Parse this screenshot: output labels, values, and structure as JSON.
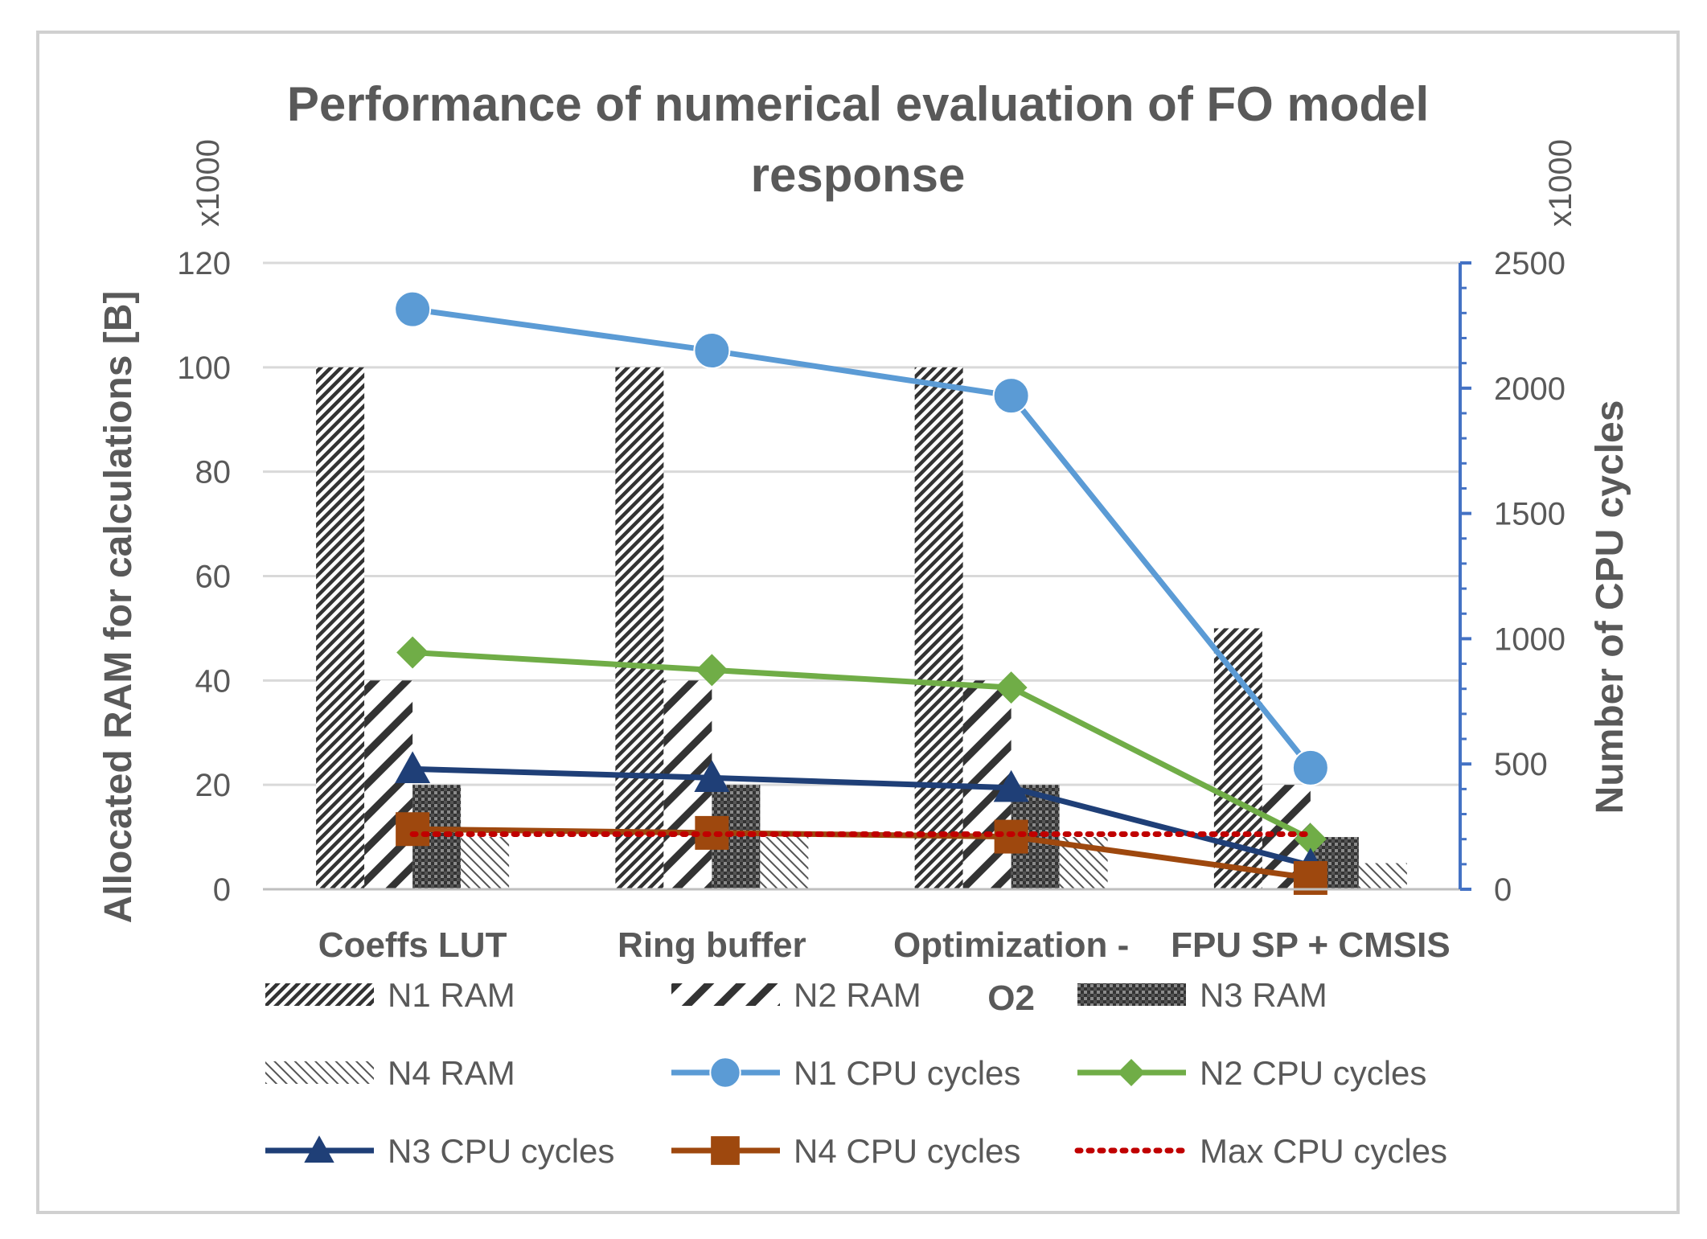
{
  "chart_data": {
    "type": "bar",
    "title_lines": [
      "Performance of numerical evaluation of FO model",
      "response"
    ],
    "categories": [
      "Coeffs LUT",
      "Ring buffer",
      "Optimization - O2",
      "FPU SP + CMSIS"
    ],
    "category_label_lines": [
      [
        "Coeffs LUT"
      ],
      [
        "Ring buffer"
      ],
      [
        "Optimization -",
        "O2"
      ],
      [
        "FPU SP + CMSIS"
      ]
    ],
    "y_left": {
      "label": "Allocated RAM for calculations [B]",
      "multiplier": "x1000",
      "range": [
        0,
        120
      ],
      "ticks": [
        0,
        20,
        40,
        60,
        80,
        100,
        120
      ]
    },
    "y_right": {
      "label": "Number of CPU cycles",
      "multiplier": "x1000",
      "range": [
        0,
        2500
      ],
      "ticks": [
        0,
        500,
        1000,
        1500,
        2000,
        2500
      ]
    },
    "grid": true,
    "legend_position": "bottom",
    "bar_series": [
      {
        "name": "N1 RAM",
        "values": [
          100,
          100,
          100,
          50
        ],
        "pattern": "dense-diagonal"
      },
      {
        "name": "N2 RAM",
        "values": [
          40,
          40,
          40,
          20
        ],
        "pattern": "wide-diagonal"
      },
      {
        "name": "N3 RAM",
        "values": [
          20,
          20,
          20,
          10
        ],
        "pattern": "checker"
      },
      {
        "name": "N4 RAM",
        "values": [
          10,
          10,
          10,
          5
        ],
        "pattern": "light-diagonal"
      }
    ],
    "line_series": [
      {
        "name": "N1 CPU cycles",
        "values": [
          2315,
          2150,
          1970,
          485
        ],
        "color": "#5b9bd5",
        "marker": "circle"
      },
      {
        "name": "N2 CPU cycles",
        "values": [
          945,
          875,
          805,
          200
        ],
        "color": "#70ad47",
        "marker": "diamond"
      },
      {
        "name": "N3 CPU cycles",
        "values": [
          480,
          445,
          405,
          95
        ],
        "color": "#1f3f77",
        "marker": "triangle"
      },
      {
        "name": "N4 CPU cycles",
        "values": [
          240,
          225,
          210,
          45
        ],
        "color": "#9e480e",
        "marker": "square"
      },
      {
        "name": "Max CPU cycles",
        "values": [
          220,
          220,
          220,
          220
        ],
        "color": "#c00000",
        "marker": "none",
        "style": "dotted"
      }
    ]
  }
}
